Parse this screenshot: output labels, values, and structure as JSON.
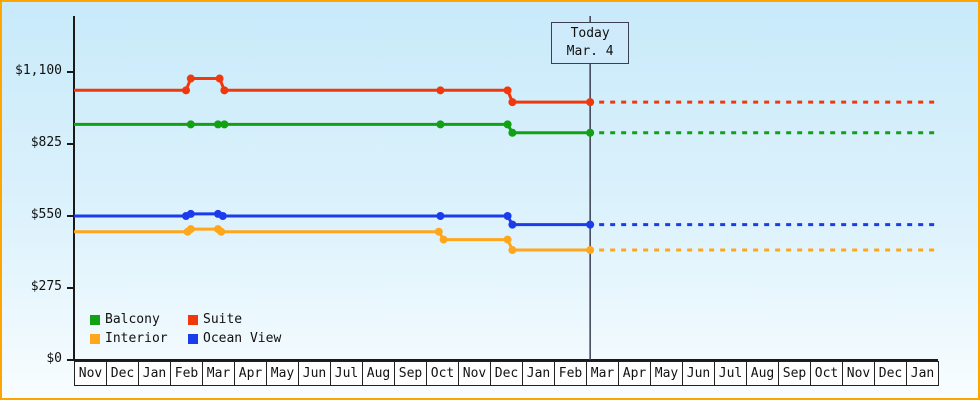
{
  "chart": {
    "today_label": {
      "line1": "Today",
      "line2": "Mar. 4"
    },
    "legend": [
      {
        "label": "Balcony",
        "color": "#12a112"
      },
      {
        "label": "Suite",
        "color": "#f1380c"
      },
      {
        "label": "Interior",
        "color": "#ffa61c"
      },
      {
        "label": "Ocean View",
        "color": "#1b3ceb"
      }
    ],
    "colors": {
      "frame_border": "#ffa500",
      "axis": "#1a1a1a",
      "today_line": "#3a3f52",
      "plot_bg_top": "#c8eafa",
      "plot_bg_bottom": "#f8fdff"
    }
  },
  "chart_data": {
    "type": "line",
    "title": "",
    "xlabel": "",
    "ylabel": "",
    "y_unit": "USD",
    "x_unit": "months since first tick (Nov)",
    "x_months": [
      "Nov",
      "Dec",
      "Jan",
      "Feb",
      "Mar",
      "Apr",
      "May",
      "Jun",
      "Jul",
      "Aug",
      "Sep",
      "Oct",
      "Nov",
      "Dec",
      "Jan",
      "Feb",
      "Mar",
      "Apr",
      "May",
      "Jun",
      "Jul",
      "Aug",
      "Sep",
      "Oct",
      "Nov",
      "Dec",
      "Jan"
    ],
    "y_ticks": [
      "$0",
      "$275",
      "$550",
      "$825",
      "$1,100"
    ],
    "y_tick_values": [
      0,
      275,
      550,
      825,
      1100
    ],
    "ylim": [
      0,
      1314
    ],
    "grid": false,
    "legend_position": "bottom-left",
    "today_x": 16.13,
    "today_text": [
      "Today",
      "Mar. 4"
    ],
    "note": "solid line = history up to today marker; dotted line = flat projection after today",
    "series": [
      {
        "name": "Suite",
        "color": "#f1380c",
        "points": [
          [
            0,
            1030
          ],
          [
            3.5,
            1030
          ],
          [
            3.65,
            1075
          ],
          [
            4.55,
            1075
          ],
          [
            4.7,
            1030
          ],
          [
            11.45,
            1030
          ],
          [
            13.55,
            1030
          ],
          [
            13.7,
            985
          ],
          [
            16.13,
            985
          ]
        ],
        "forecast_value": 985
      },
      {
        "name": "Balcony",
        "color": "#12a112",
        "points": [
          [
            0,
            900
          ],
          [
            3.65,
            900
          ],
          [
            4.5,
            900
          ],
          [
            4.7,
            900
          ],
          [
            11.45,
            900
          ],
          [
            13.55,
            900
          ],
          [
            13.7,
            868
          ],
          [
            16.13,
            868
          ]
        ],
        "forecast_value": 868
      },
      {
        "name": "Ocean View",
        "color": "#1b3ceb",
        "points": [
          [
            0,
            550
          ],
          [
            3.5,
            550
          ],
          [
            3.65,
            558
          ],
          [
            4.5,
            558
          ],
          [
            4.65,
            550
          ],
          [
            11.45,
            550
          ],
          [
            13.55,
            550
          ],
          [
            13.7,
            517
          ],
          [
            16.13,
            517
          ]
        ],
        "forecast_value": 517
      },
      {
        "name": "Interior",
        "color": "#ffa61c",
        "points": [
          [
            0,
            490
          ],
          [
            3.55,
            490
          ],
          [
            3.65,
            500
          ],
          [
            4.5,
            500
          ],
          [
            4.6,
            490
          ],
          [
            11.4,
            490
          ],
          [
            11.55,
            460
          ],
          [
            13.55,
            460
          ],
          [
            13.7,
            420
          ],
          [
            16.13,
            420
          ]
        ],
        "forecast_value": 420
      }
    ]
  }
}
